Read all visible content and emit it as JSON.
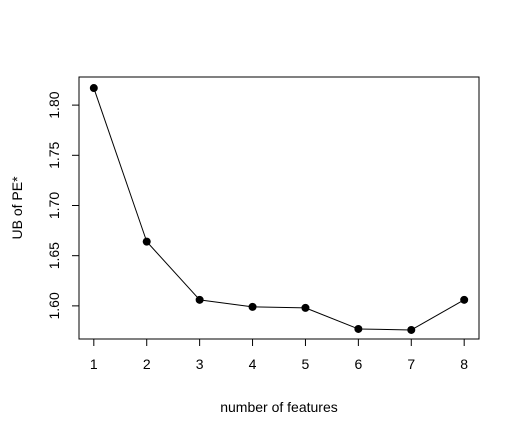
{
  "chart_data": {
    "type": "line",
    "title": "",
    "xlabel": "number of features",
    "ylabel": "UB of PE*",
    "x": [
      1,
      2,
      3,
      4,
      5,
      6,
      7,
      8
    ],
    "series": [
      {
        "values": [
          1.817,
          1.664,
          1.606,
          1.599,
          1.598,
          1.577,
          1.576,
          1.606
        ]
      }
    ],
    "xticks": [
      "1",
      "2",
      "3",
      "4",
      "5",
      "6",
      "7",
      "8"
    ],
    "yticks": [
      "1.60",
      "1.65",
      "1.70",
      "1.75",
      "1.80"
    ],
    "xlim": [
      0.72,
      8.28
    ],
    "ylim": [
      1.567,
      1.828
    ],
    "grid": false,
    "line_color": "#000000",
    "marker_color": "#000000"
  }
}
